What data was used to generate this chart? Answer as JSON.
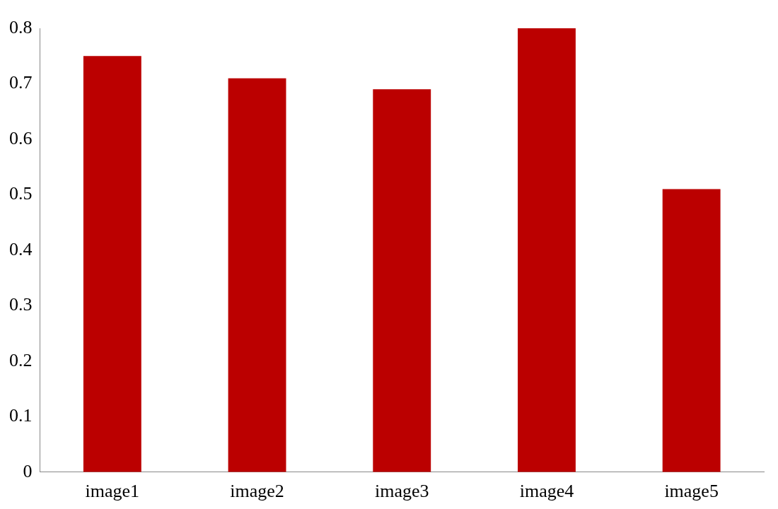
{
  "chart_data": {
    "type": "bar",
    "categories": [
      "image1",
      "image2",
      "image3",
      "image4",
      "image5"
    ],
    "values": [
      0.75,
      0.71,
      0.69,
      0.8,
      0.51
    ],
    "color": "#bb0000",
    "ylim": [
      0,
      0.8
    ],
    "yticks": [
      0,
      0.1,
      0.2,
      0.3,
      0.4,
      0.5,
      0.6,
      0.7,
      0.8
    ],
    "grid": false,
    "legend": false
  }
}
